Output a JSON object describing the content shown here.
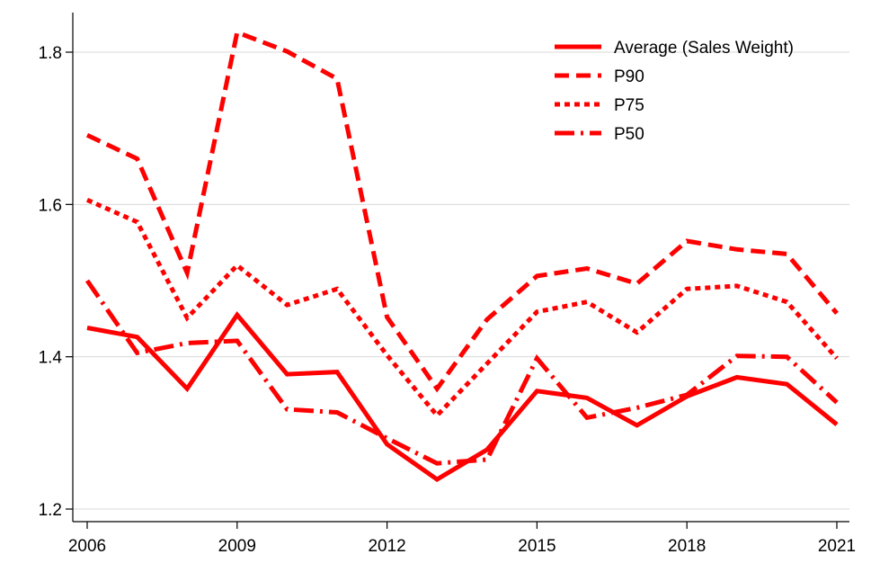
{
  "chart_data": {
    "type": "line",
    "title": "",
    "xlabel": "",
    "ylabel": "",
    "x": [
      2006,
      2007,
      2008,
      2009,
      2010,
      2011,
      2012,
      2013,
      2014,
      2015,
      2016,
      2017,
      2018,
      2019,
      2020,
      2021
    ],
    "xticks": [
      "2006",
      "2009",
      "2012",
      "2015",
      "2018",
      "2021"
    ],
    "yticks": [
      "1.2",
      "1.4",
      "1.6",
      "1.8"
    ],
    "xlim": [
      2006,
      2021
    ],
    "ylim": [
      1.2,
      1.84
    ],
    "grid": "horizontal",
    "legend_position": "top-right",
    "color": "#ff0000",
    "series": [
      {
        "name": "Average (Sales Weight)",
        "style": "solid",
        "values": [
          1.438,
          1.426,
          1.358,
          1.455,
          1.377,
          1.38,
          1.285,
          1.239,
          1.278,
          1.355,
          1.346,
          1.31,
          1.348,
          1.373,
          1.364,
          1.311
        ]
      },
      {
        "name": "P90",
        "style": "dashed",
        "values": [
          1.691,
          1.66,
          1.51,
          1.826,
          1.801,
          1.765,
          1.452,
          1.358,
          1.449,
          1.506,
          1.516,
          1.496,
          1.552,
          1.541,
          1.535,
          1.457
        ]
      },
      {
        "name": "P75",
        "style": "dotted",
        "values": [
          1.606,
          1.577,
          1.451,
          1.52,
          1.468,
          1.489,
          1.402,
          1.323,
          1.391,
          1.459,
          1.472,
          1.432,
          1.489,
          1.493,
          1.472,
          1.398
        ]
      },
      {
        "name": "P50",
        "style": "dashdot",
        "values": [
          1.5,
          1.405,
          1.418,
          1.421,
          1.331,
          1.327,
          1.293,
          1.26,
          1.265,
          1.398,
          1.32,
          1.333,
          1.35,
          1.401,
          1.4,
          1.34
        ]
      }
    ]
  }
}
